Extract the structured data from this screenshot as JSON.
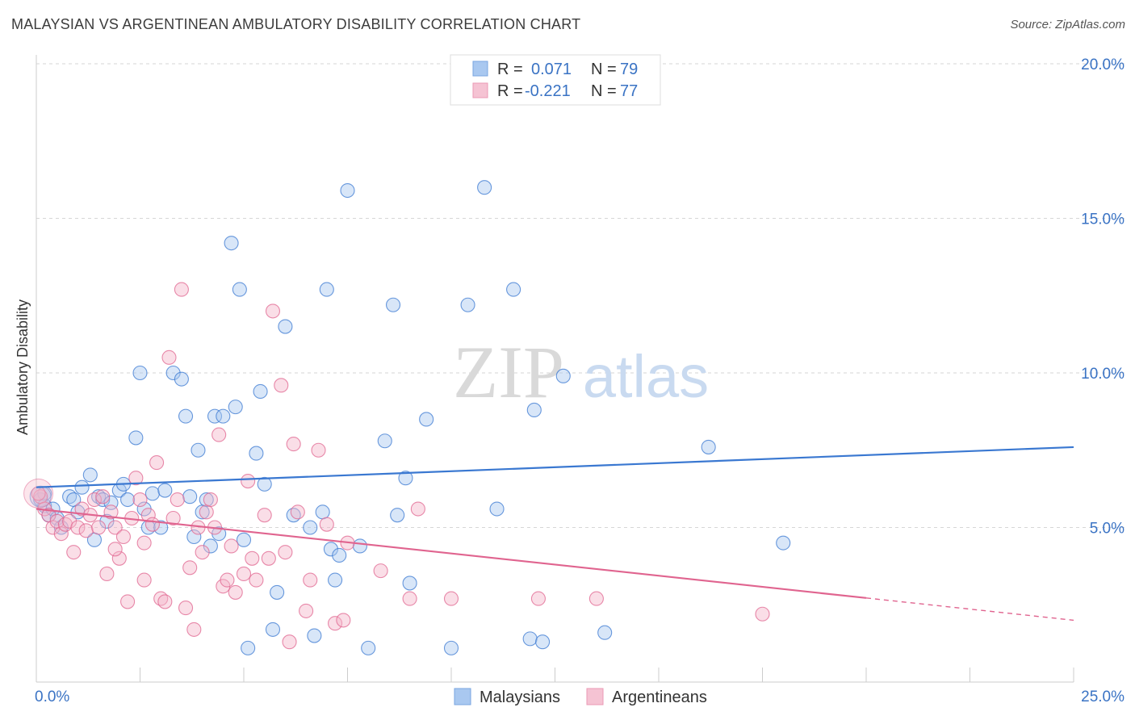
{
  "header": {
    "title": "MALAYSIAN VS ARGENTINEAN AMBULATORY DISABILITY CORRELATION CHART",
    "source": "Source: ZipAtlas.com"
  },
  "watermark": {
    "part1": "ZIP",
    "part2": "atlas"
  },
  "legend": {
    "rows": [
      {
        "r_label": "R =",
        "r_value": "0.071",
        "n_label": "N =",
        "n_value": "79",
        "color": "#a9c8f0"
      },
      {
        "r_label": "R =",
        "r_value": "-0.221",
        "n_label": "N =",
        "n_value": "77",
        "color": "#f5b6c9"
      }
    ]
  },
  "bottom_legend": [
    "Malaysians",
    "Argentineans"
  ],
  "chart_data": {
    "type": "scatter",
    "title": "MALAYSIAN VS ARGENTINEAN AMBULATORY DISABILITY CORRELATION CHART",
    "xlabel": "",
    "ylabel": "Ambulatory Disability",
    "xlim": [
      0,
      25
    ],
    "ylim": [
      0,
      20
    ],
    "x_tick_labels": [
      "0.0%",
      "25.0%"
    ],
    "y_ticks": [
      5,
      10,
      15,
      20
    ],
    "y_tick_labels": [
      "5.0%",
      "10.0%",
      "15.0%",
      "20.0%"
    ],
    "series": [
      {
        "name": "Malaysians",
        "color": "#3a78d1",
        "fill": "#a9c8f0",
        "r": 0.071,
        "n": 79,
        "trend": {
          "x": [
            0,
            25
          ],
          "y": [
            6.3,
            7.6
          ],
          "solid_until": 25
        },
        "points": [
          [
            0.1,
            5.9
          ],
          [
            0.2,
            5.7
          ],
          [
            0.3,
            5.4
          ],
          [
            0.4,
            5.6
          ],
          [
            0.5,
            5.3
          ],
          [
            0.6,
            5.0
          ],
          [
            0.8,
            6.0
          ],
          [
            0.9,
            5.9
          ],
          [
            1.0,
            5.5
          ],
          [
            1.1,
            6.3
          ],
          [
            1.3,
            6.7
          ],
          [
            1.4,
            4.6
          ],
          [
            1.5,
            6.0
          ],
          [
            1.6,
            5.9
          ],
          [
            1.7,
            5.2
          ],
          [
            1.8,
            5.8
          ],
          [
            2.0,
            6.2
          ],
          [
            2.1,
            6.4
          ],
          [
            2.2,
            5.9
          ],
          [
            2.5,
            10.0
          ],
          [
            2.4,
            7.9
          ],
          [
            2.6,
            5.6
          ],
          [
            2.7,
            5.0
          ],
          [
            2.8,
            6.1
          ],
          [
            3.0,
            5.0
          ],
          [
            3.1,
            6.2
          ],
          [
            3.3,
            10.0
          ],
          [
            3.5,
            9.8
          ],
          [
            3.6,
            8.6
          ],
          [
            3.7,
            6.0
          ],
          [
            3.8,
            4.7
          ],
          [
            3.9,
            7.5
          ],
          [
            4.0,
            5.5
          ],
          [
            4.1,
            5.9
          ],
          [
            4.2,
            4.4
          ],
          [
            4.3,
            8.6
          ],
          [
            4.4,
            4.8
          ],
          [
            4.5,
            8.6
          ],
          [
            4.7,
            14.2
          ],
          [
            4.8,
            8.9
          ],
          [
            4.9,
            12.7
          ],
          [
            5.0,
            4.6
          ],
          [
            5.1,
            1.1
          ],
          [
            5.3,
            7.4
          ],
          [
            5.4,
            9.4
          ],
          [
            5.5,
            6.4
          ],
          [
            5.7,
            1.7
          ],
          [
            5.8,
            2.9
          ],
          [
            6.0,
            11.5
          ],
          [
            6.2,
            5.4
          ],
          [
            6.6,
            5.0
          ],
          [
            6.7,
            1.5
          ],
          [
            6.9,
            5.5
          ],
          [
            7.0,
            12.7
          ],
          [
            7.1,
            4.3
          ],
          [
            7.2,
            3.3
          ],
          [
            7.3,
            4.1
          ],
          [
            7.5,
            15.9
          ],
          [
            7.8,
            4.4
          ],
          [
            8.0,
            1.1
          ],
          [
            8.4,
            7.8
          ],
          [
            8.6,
            12.2
          ],
          [
            8.7,
            5.4
          ],
          [
            8.9,
            6.6
          ],
          [
            9.0,
            3.2
          ],
          [
            9.4,
            8.5
          ],
          [
            10.0,
            1.1
          ],
          [
            10.4,
            12.2
          ],
          [
            10.8,
            16.0
          ],
          [
            11.1,
            5.6
          ],
          [
            11.5,
            12.7
          ],
          [
            11.9,
            1.4
          ],
          [
            12.0,
            8.8
          ],
          [
            12.2,
            1.3
          ],
          [
            12.7,
            9.9
          ],
          [
            13.7,
            1.6
          ],
          [
            16.2,
            7.6
          ],
          [
            18.0,
            4.5
          ],
          [
            0.2,
            6.1
          ]
        ]
      },
      {
        "name": "Argentineans",
        "color": "#e0648f",
        "fill": "#f5b6c9",
        "r": -0.221,
        "n": 77,
        "trend": {
          "x": [
            0,
            25
          ],
          "y": [
            5.6,
            2.0
          ],
          "solid_until": 20
        },
        "points": [
          [
            0.1,
            6.0
          ],
          [
            0.2,
            5.6
          ],
          [
            0.3,
            5.4
          ],
          [
            0.4,
            5.0
          ],
          [
            0.5,
            5.2
          ],
          [
            0.6,
            4.8
          ],
          [
            0.7,
            5.1
          ],
          [
            0.8,
            5.2
          ],
          [
            0.9,
            4.2
          ],
          [
            1.0,
            5.0
          ],
          [
            1.1,
            5.6
          ],
          [
            1.2,
            4.9
          ],
          [
            1.3,
            5.4
          ],
          [
            1.4,
            5.9
          ],
          [
            1.5,
            5.0
          ],
          [
            1.6,
            6.0
          ],
          [
            1.7,
            3.5
          ],
          [
            1.8,
            5.5
          ],
          [
            1.9,
            5.0
          ],
          [
            2.0,
            4.0
          ],
          [
            2.1,
            4.7
          ],
          [
            2.2,
            2.6
          ],
          [
            2.3,
            5.3
          ],
          [
            2.4,
            6.6
          ],
          [
            2.5,
            5.9
          ],
          [
            2.6,
            4.5
          ],
          [
            2.7,
            5.4
          ],
          [
            2.8,
            5.1
          ],
          [
            2.9,
            7.1
          ],
          [
            3.0,
            2.7
          ],
          [
            3.1,
            2.6
          ],
          [
            3.2,
            10.5
          ],
          [
            3.3,
            5.3
          ],
          [
            3.4,
            5.9
          ],
          [
            3.5,
            12.7
          ],
          [
            3.6,
            2.4
          ],
          [
            3.7,
            3.7
          ],
          [
            3.8,
            1.7
          ],
          [
            3.9,
            5.0
          ],
          [
            4.0,
            4.2
          ],
          [
            4.1,
            5.5
          ],
          [
            4.2,
            5.9
          ],
          [
            4.3,
            5.0
          ],
          [
            4.4,
            8.0
          ],
          [
            4.5,
            3.1
          ],
          [
            4.6,
            3.3
          ],
          [
            4.7,
            4.4
          ],
          [
            4.8,
            2.9
          ],
          [
            5.0,
            3.5
          ],
          [
            5.1,
            6.5
          ],
          [
            5.2,
            4.0
          ],
          [
            5.3,
            3.3
          ],
          [
            5.5,
            5.4
          ],
          [
            5.6,
            4.0
          ],
          [
            5.7,
            12.0
          ],
          [
            5.9,
            9.6
          ],
          [
            6.0,
            4.2
          ],
          [
            6.1,
            1.3
          ],
          [
            6.2,
            7.7
          ],
          [
            6.3,
            5.5
          ],
          [
            6.5,
            2.3
          ],
          [
            6.6,
            3.3
          ],
          [
            6.8,
            7.5
          ],
          [
            7.0,
            5.1
          ],
          [
            7.2,
            1.9
          ],
          [
            7.4,
            2.0
          ],
          [
            7.5,
            4.5
          ],
          [
            8.3,
            3.6
          ],
          [
            9.0,
            2.7
          ],
          [
            9.2,
            5.6
          ],
          [
            10.0,
            2.7
          ],
          [
            12.1,
            2.7
          ],
          [
            13.5,
            2.7
          ],
          [
            17.5,
            2.2
          ],
          [
            0.05,
            6.1
          ],
          [
            1.9,
            4.3
          ],
          [
            2.6,
            3.3
          ]
        ]
      }
    ]
  }
}
